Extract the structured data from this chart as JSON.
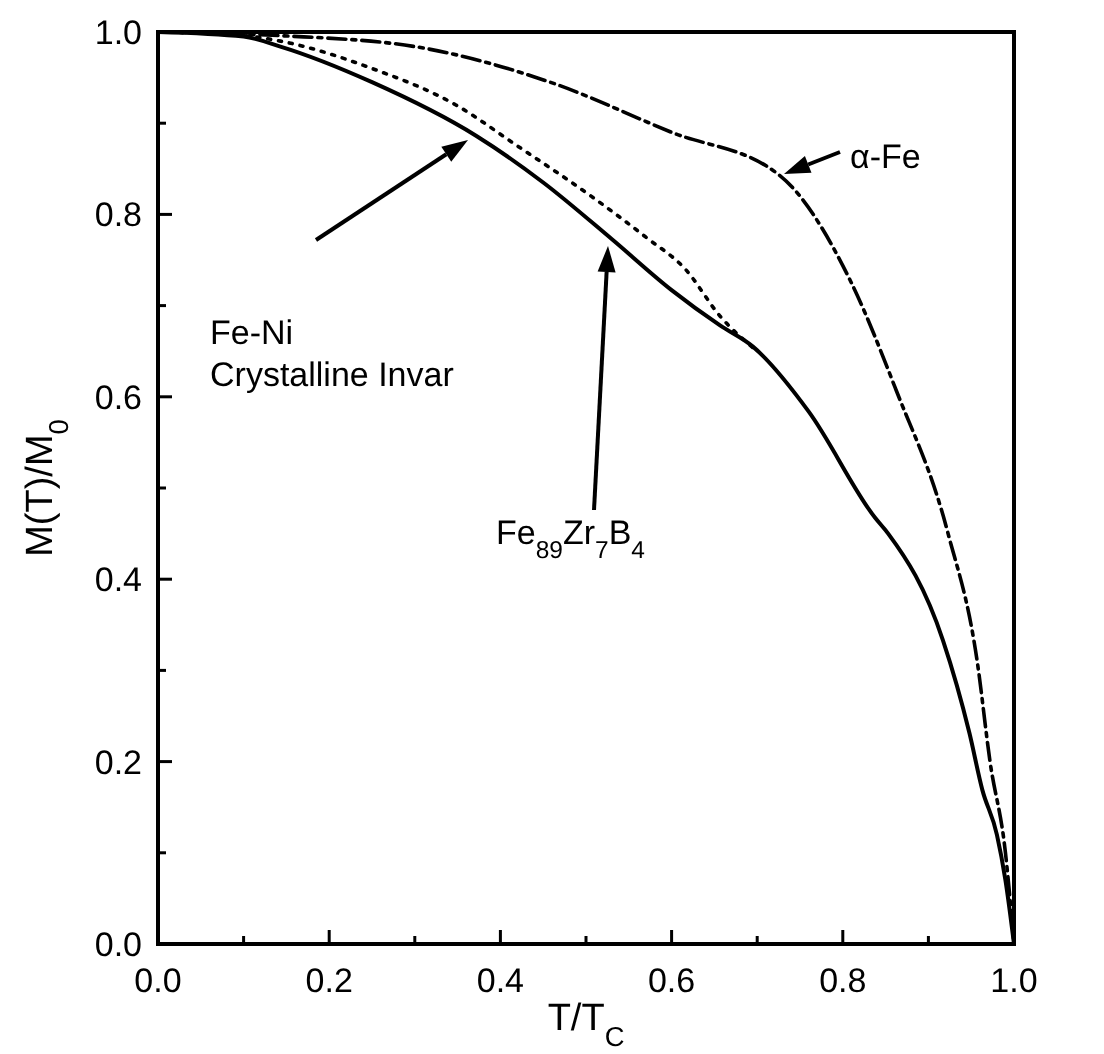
{
  "chart_data": {
    "type": "line",
    "xlabel": "T/T$_{C}$",
    "ylabel": "M(T)/M$_{0}$",
    "xlim": [
      0,
      1
    ],
    "ylim": [
      0,
      1
    ],
    "xticks": [
      {
        "value": 0,
        "label": "0.0"
      },
      {
        "value": 0.1,
        "label": null
      },
      {
        "value": 0.2,
        "label": "0.2"
      },
      {
        "value": 0.3,
        "label": null
      },
      {
        "value": 0.4,
        "label": "0.4"
      },
      {
        "value": 0.5,
        "label": null
      },
      {
        "value": 0.6,
        "label": "0.6"
      },
      {
        "value": 0.7,
        "label": null
      },
      {
        "value": 0.8,
        "label": "0.8"
      },
      {
        "value": 0.9,
        "label": null
      },
      {
        "value": 1,
        "label": "1.0"
      }
    ],
    "yticks": [
      {
        "value": 0,
        "label": "0.0"
      },
      {
        "value": 0.1,
        "label": null
      },
      {
        "value": 0.2,
        "label": "0.2"
      },
      {
        "value": 0.3,
        "label": null
      },
      {
        "value": 0.4,
        "label": "0.4"
      },
      {
        "value": 0.5,
        "label": null
      },
      {
        "value": 0.6,
        "label": "0.6"
      },
      {
        "value": 0.7,
        "label": null
      },
      {
        "value": 0.8,
        "label": "0.8"
      },
      {
        "value": 0.9,
        "label": null
      },
      {
        "value": 1,
        "label": "1.0"
      }
    ],
    "series": [
      {
        "color": "#000000",
        "line_style": "solid",
        "x": [
          0,
          0.1,
          0.143,
          0.25,
          0.372,
          0.45,
          0.53,
          0.6,
          0.657,
          0.695,
          0.76,
          0.838,
          0.853,
          0.917,
          0.948,
          0.963,
          0.98,
          0.99,
          1
        ],
        "values": [
          1,
          0.995,
          0.984,
          0.945,
          0.886,
          0.835,
          0.773,
          0.717,
          0.678,
          0.655,
          0.584,
          0.467,
          0.45,
          0.333,
          0.231,
          0.169,
          0.12,
          0.07,
          0
        ]
      },
      {
        "color": "#000000",
        "line_style": "dotted",
        "x": [
          0,
          0.1,
          0.143,
          0.25,
          0.348,
          0.42,
          0.506,
          0.57,
          0.616,
          0.657,
          0.7
        ],
        "values": [
          1,
          0.996,
          0.99,
          0.96,
          0.92,
          0.875,
          0.82,
          0.775,
          0.74,
          0.688,
          0.65
        ]
      },
      {
        "color": "#000000",
        "line_style": "dashed",
        "x": [
          0,
          0.143,
          0.3,
          0.458,
          0.6,
          0.726,
          0.81,
          0.862,
          0.923,
          0.957,
          0.972,
          0.99,
          1
        ],
        "values": [
          1,
          0.996,
          0.984,
          0.945,
          0.89,
          0.843,
          0.725,
          0.608,
          0.45,
          0.31,
          0.2,
          0.1,
          0
        ]
      }
    ],
    "annotations": [
      "Fe-Ni\nCrystalline Invar",
      "Fe$_{89}$Zr$_{7}$B$_{4}$",
      "α-Fe"
    ]
  }
}
